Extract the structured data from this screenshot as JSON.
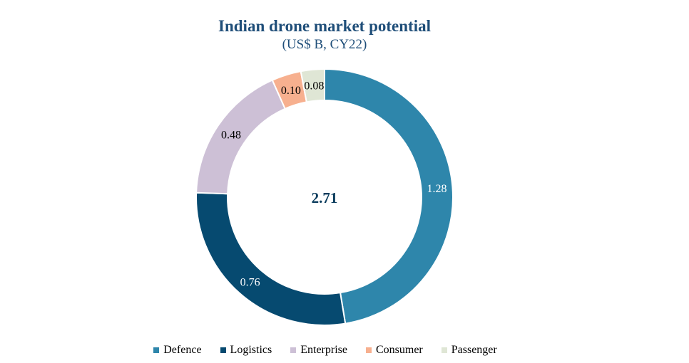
{
  "chart_data": {
    "type": "pie",
    "variant": "donut",
    "title": "Indian drone market potential",
    "subtitle": "(US$ B, CY22)",
    "total_label": "2.71",
    "slices": [
      {
        "name": "Defence",
        "value": 1.28,
        "label": "1.28",
        "color": "#2e86ab",
        "label_color": "#ffffff"
      },
      {
        "name": "Logistics",
        "value": 0.76,
        "label": "0.76",
        "color": "#064a70",
        "label_color": "#ffffff"
      },
      {
        "name": "Enterprise",
        "value": 0.48,
        "label": "0.48",
        "color": "#cdc0d6",
        "label_color": "#000000"
      },
      {
        "name": "Consumer",
        "value": 0.1,
        "label": "0.10",
        "color": "#f7b08f",
        "label_color": "#000000"
      },
      {
        "name": "Passenger",
        "value": 0.08,
        "label": "0.08",
        "color": "#dfe6d5",
        "label_color": "#000000"
      }
    ],
    "legend_position": "bottom"
  },
  "colors": {
    "title": "#1f4e79",
    "total": "#0b3c5d"
  }
}
